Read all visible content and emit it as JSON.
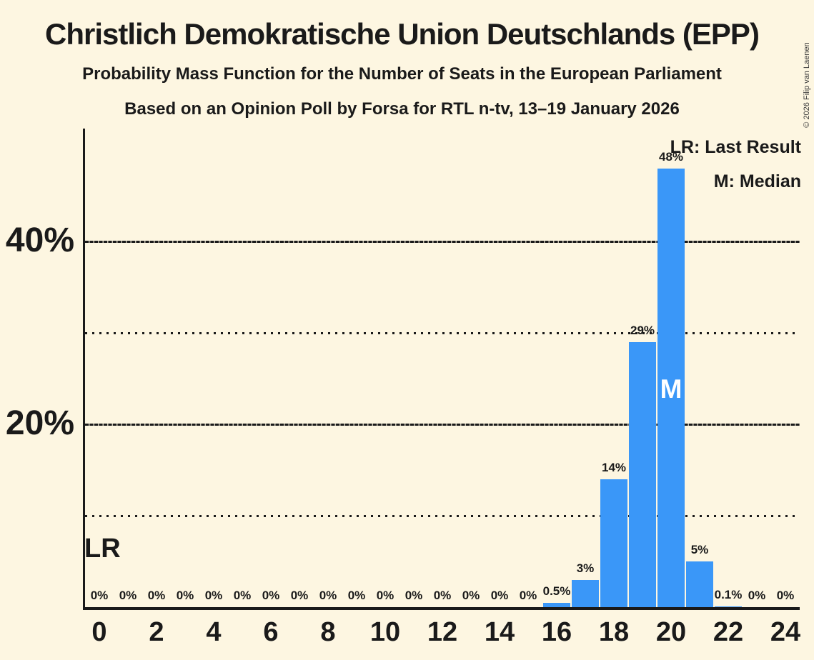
{
  "page": {
    "background": "#FDF6E1",
    "text_color": "#1A1A1A"
  },
  "header": {
    "title": "Christlich Demokratische Union Deutschlands (EPP)",
    "subtitle": "Probability Mass Function for the Number of Seats in the European Parliament",
    "source_line": "Based on an Opinion Poll by Forsa for RTL n-tv, 13–19 January 2026",
    "copyright": "© 2026 Filip van Laenen"
  },
  "legend": {
    "lr": "LR: Last Result",
    "m": "M: Median"
  },
  "annotations": {
    "last_result_label": "LR",
    "median_label": "M"
  },
  "chart_data": {
    "type": "bar",
    "title": "Probability Mass Function for the Number of Seats in the European Parliament",
    "x": [
      0,
      1,
      2,
      3,
      4,
      5,
      6,
      7,
      8,
      9,
      10,
      11,
      12,
      13,
      14,
      15,
      16,
      17,
      18,
      19,
      20,
      21,
      22,
      23,
      24
    ],
    "values": [
      0,
      0,
      0,
      0,
      0,
      0,
      0,
      0,
      0,
      0,
      0,
      0,
      0,
      0,
      0,
      0,
      0.5,
      3,
      14,
      29,
      48,
      5,
      0.1,
      0,
      0
    ],
    "bar_labels": [
      "0%",
      "0%",
      "0%",
      "0%",
      "0%",
      "0%",
      "0%",
      "0%",
      "0%",
      "0%",
      "0%",
      "0%",
      "0%",
      "0%",
      "0%",
      "0%",
      "0.5%",
      "3%",
      "14%",
      "29%",
      "48%",
      "5%",
      "0.1%",
      "0%",
      "0%"
    ],
    "xticks": [
      0,
      2,
      4,
      6,
      8,
      10,
      12,
      14,
      16,
      18,
      20,
      22,
      24
    ],
    "yticks": [
      {
        "value": 10,
        "style": "dotted",
        "label": ""
      },
      {
        "value": 20,
        "style": "dashed",
        "label": "20%"
      },
      {
        "value": 30,
        "style": "dotted",
        "label": ""
      },
      {
        "value": 40,
        "style": "dashed",
        "label": "40%"
      }
    ],
    "ylim": [
      0,
      52
    ],
    "xlabel": "",
    "ylabel": "",
    "legend_position": "top-right",
    "grid": "horizontal-only",
    "bar_color": "#3A97F8",
    "median_seat": 20,
    "last_result_seat": 0
  }
}
